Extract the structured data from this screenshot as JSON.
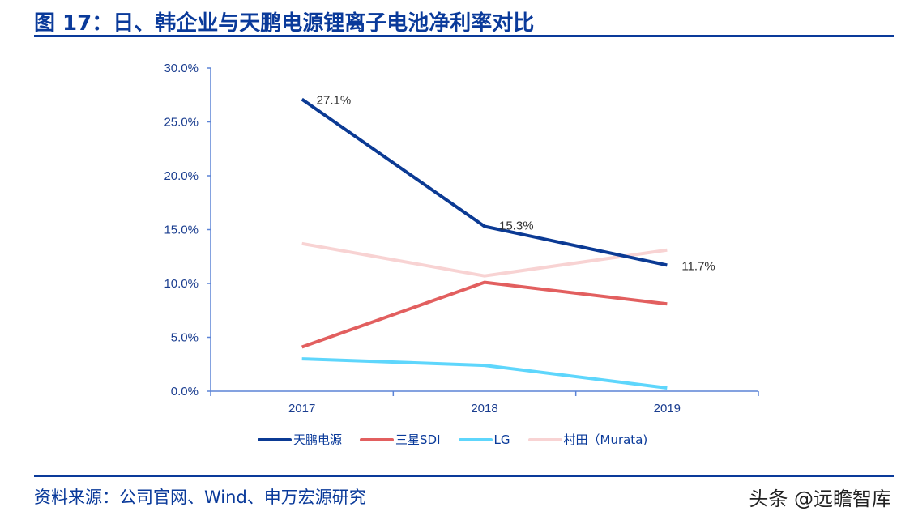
{
  "title": "图 17：日、韩企业与天鹏电源锂离子电池净利率对比",
  "source": "资料来源：公司官网、Wind、申万宏源研究",
  "watermark": "头条 @远瞻智库",
  "chart_data": {
    "type": "line",
    "categories": [
      "2017",
      "2018",
      "2019"
    ],
    "ylim": [
      0,
      30
    ],
    "yticks": [
      "0.0%",
      "5.0%",
      "10.0%",
      "15.0%",
      "20.0%",
      "25.0%",
      "30.0%"
    ],
    "grid": false,
    "legend_position": "bottom",
    "series": [
      {
        "name": "天鹏电源",
        "color": "#0b3a94",
        "values": [
          27.1,
          15.3,
          11.7
        ],
        "labels": [
          "27.1%",
          "15.3%",
          "11.7%"
        ]
      },
      {
        "name": "三星SDI",
        "color": "#e25f5f",
        "values": [
          4.1,
          10.1,
          8.1
        ]
      },
      {
        "name": "LG",
        "color": "#5ed6fc",
        "values": [
          3.0,
          2.4,
          0.3
        ]
      },
      {
        "name": "村田（Murata)",
        "color": "#f8d3d3",
        "values": [
          13.7,
          10.7,
          13.1
        ]
      }
    ]
  }
}
